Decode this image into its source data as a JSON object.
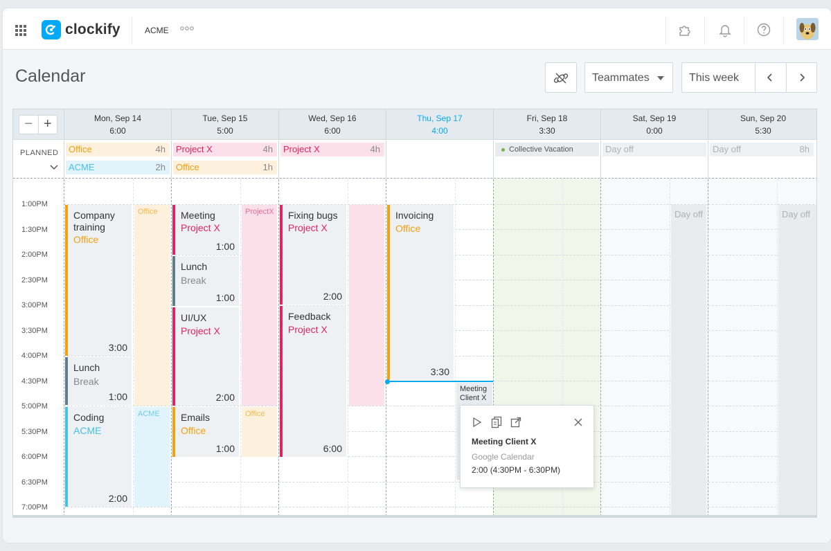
{
  "header": {
    "app_name": "clockify",
    "workspace": "ACME",
    "icons": [
      "apps-grid-icon",
      "clockify-logo-icon",
      "more-dots-icon",
      "puzzle-icon",
      "bell-icon",
      "help-icon",
      "avatar"
    ]
  },
  "page": {
    "title": "Calendar",
    "teammates_label": "Teammates",
    "range_label": "This week"
  },
  "colors": {
    "accent": "#03a9f4",
    "office": "#f5a00f",
    "projectx": "#e0245e",
    "acme": "#43c1e8",
    "break": "#607d8b",
    "vacation": "#7cb342"
  },
  "calendar": {
    "planned_label": "PLANNED",
    "days": [
      {
        "name": "Mon, Sep 14",
        "total": "6:00"
      },
      {
        "name": "Tue, Sep 15",
        "total": "5:00"
      },
      {
        "name": "Wed, Sep 16",
        "total": "6:00"
      },
      {
        "name": "Thu, Sep 17",
        "total": "4:00"
      },
      {
        "name": "Fri, Sep 18",
        "total": "3:30"
      },
      {
        "name": "Sat, Sep 19",
        "total": "0:00"
      },
      {
        "name": "Sun, Sep 20",
        "total": "5:30"
      }
    ],
    "planned": {
      "mon": [
        {
          "label": "Office",
          "hours": "4h"
        },
        {
          "label": "ACME",
          "hours": "2h"
        }
      ],
      "tue": [
        {
          "label": "Project X",
          "hours": "4h"
        },
        {
          "label": "Office",
          "hours": "1h"
        }
      ],
      "wed": [
        {
          "label": "Project X",
          "hours": "4h"
        }
      ],
      "fri": [
        {
          "label": "Collective Vacation"
        }
      ],
      "sat": [
        {
          "label": "Day off"
        }
      ],
      "sun": [
        {
          "label": "Day off",
          "hours": "8h"
        }
      ]
    },
    "times": [
      "1:00PM",
      "1:30PM",
      "2:00PM",
      "2:30PM",
      "3:00PM",
      "3:30PM",
      "4:00PM",
      "4:30PM",
      "5:00PM",
      "5:30PM",
      "6:00PM",
      "6:30PM",
      "7:00PM"
    ],
    "entries": {
      "company_training": {
        "title": "Company training",
        "project": "Office",
        "duration": "3:00"
      },
      "mon_lunch": {
        "title": "Lunch",
        "project": "Break",
        "duration": "1:00"
      },
      "coding": {
        "title": "Coding",
        "project": "ACME",
        "duration": "2:00"
      },
      "meeting": {
        "title": "Meeting",
        "project": "Project X",
        "duration": "1:00"
      },
      "tue_lunch": {
        "title": "Lunch",
        "project": "Break",
        "duration": "1:00"
      },
      "uiux": {
        "title": "UI/UX",
        "project": "Project X",
        "duration": "2:00"
      },
      "emails": {
        "title": "Emails",
        "project": "Office",
        "duration": "1:00"
      },
      "fixing_bugs": {
        "title": "Fixing bugs",
        "project": "Project X",
        "duration": "2:00"
      },
      "feedback": {
        "title": "Feedback",
        "project": "Project X",
        "duration": "6:00"
      },
      "invoicing": {
        "title": "Invoicing",
        "project": "Office",
        "duration": "3:30"
      },
      "meeting_client": {
        "title": "Meeting Client X"
      }
    },
    "plan_labels": {
      "mon_office": "Office",
      "mon_acme": "ACME",
      "tue_projectx": "ProjectX",
      "tue_office": "Office",
      "sat_dayoff": "Day off",
      "sun_dayoff": "Day off"
    }
  },
  "popup": {
    "title": "Meeting Client X",
    "source": "Google Calendar",
    "detail": "2:00 (4:30PM - 6:30PM)"
  }
}
